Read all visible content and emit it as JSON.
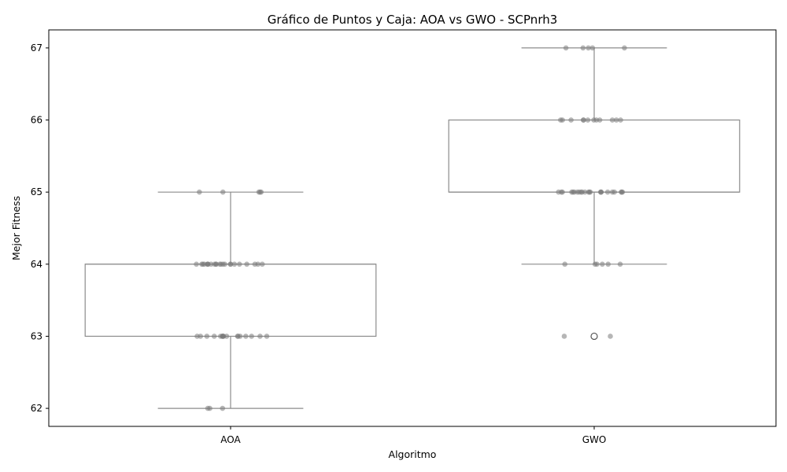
{
  "chart_data": {
    "type": "box",
    "title": "Gráfico de Puntos y Caja: AOA vs GWO - SCPnrh3",
    "xlabel": "Algoritmo",
    "ylabel": "Mejor Fitness",
    "ylim": [
      61.75,
      67.25
    ],
    "yticks": [
      62,
      63,
      64,
      65,
      66,
      67
    ],
    "categories": [
      "AOA",
      "GWO"
    ],
    "grid": false,
    "legend": "none",
    "colors": {
      "box_edge": "#8c8c8c",
      "points": "#7a7a7a"
    },
    "boxes": [
      {
        "category": "AOA",
        "whisker_low": 62,
        "q1": 63,
        "median": 64,
        "q3": 64,
        "whisker_high": 65,
        "outliers": []
      },
      {
        "category": "GWO",
        "whisker_low": 64,
        "q1": 65,
        "median": 65,
        "q3": 66,
        "whisker_high": 67,
        "outliers": [
          63
        ]
      }
    ],
    "points": [
      {
        "category": "AOA",
        "values": [
          65,
          65,
          65,
          65,
          65,
          64,
          64,
          64,
          64,
          64,
          64,
          64,
          64,
          64,
          64,
          64,
          64,
          64,
          64,
          64,
          64,
          64,
          64,
          64,
          64,
          64,
          64,
          64,
          63,
          63,
          63,
          63,
          63,
          63,
          63,
          63,
          63,
          63,
          63,
          63,
          63,
          63,
          63,
          63,
          63,
          62,
          62,
          62
        ]
      },
      {
        "category": "GWO",
        "values": [
          67,
          67,
          67,
          67,
          67,
          66,
          66,
          66,
          66,
          66,
          66,
          66,
          66,
          66,
          66,
          66,
          66,
          65,
          65,
          65,
          65,
          65,
          65,
          65,
          65,
          65,
          65,
          65,
          65,
          65,
          65,
          65,
          65,
          65,
          65,
          65,
          65,
          65,
          65,
          65,
          64,
          64,
          64,
          64,
          64,
          64,
          63,
          63
        ]
      }
    ]
  }
}
